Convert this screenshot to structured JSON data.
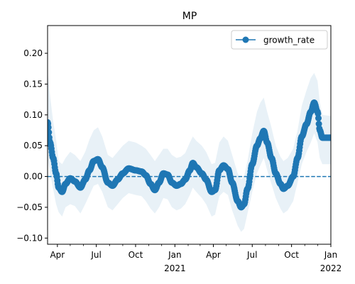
{
  "chart_data": {
    "type": "line",
    "title": "MP",
    "xlabel": "",
    "ylabel": "",
    "x_range": [
      "2020-03-09",
      "2022-01-01"
    ],
    "ylim": [
      -0.11,
      0.245
    ],
    "y_ticks": [
      -0.1,
      -0.05,
      0.0,
      0.05,
      0.1,
      0.15,
      0.2
    ],
    "y_tick_labels": [
      "−0.10",
      "−0.05",
      "0.00",
      "0.05",
      "0.10",
      "0.15",
      "0.20"
    ],
    "x_major_ticks": [
      {
        "date": "2020-04-01",
        "label": "Apr",
        "sublabel": ""
      },
      {
        "date": "2020-07-01",
        "label": "Jul",
        "sublabel": ""
      },
      {
        "date": "2020-10-01",
        "label": "Oct",
        "sublabel": ""
      },
      {
        "date": "2021-01-01",
        "label": "Jan",
        "sublabel": "2021"
      },
      {
        "date": "2021-04-01",
        "label": "Apr",
        "sublabel": ""
      },
      {
        "date": "2021-07-01",
        "label": "Jul",
        "sublabel": ""
      },
      {
        "date": "2021-10-01",
        "label": "Oct",
        "sublabel": ""
      },
      {
        "date": "2022-01-01",
        "label": "Jan",
        "sublabel": "2022"
      }
    ],
    "x_minor_ticks": [
      "2020-05-01",
      "2020-06-01",
      "2020-08-01",
      "2020-09-01",
      "2020-11-01",
      "2020-12-01",
      "2021-02-01",
      "2021-03-01",
      "2021-05-01",
      "2021-06-01",
      "2021-08-01",
      "2021-09-01",
      "2021-11-01",
      "2021-12-01"
    ],
    "grid": false,
    "legend": {
      "position": "upper right",
      "entries": [
        "growth_rate"
      ]
    },
    "reference_line": {
      "y": 0.0,
      "style": "dashed"
    },
    "series": [
      {
        "name": "growth_rate",
        "color": "#1f77b4",
        "band_color": "#1f77b4",
        "band_opacity": 0.1,
        "keypoints": [
          {
            "x": "2020-03-09",
            "y": 0.088,
            "lo": 0.03,
            "hi": 0.17
          },
          {
            "x": "2020-03-15",
            "y": 0.055,
            "lo": 0.005,
            "hi": 0.13
          },
          {
            "x": "2020-03-22",
            "y": 0.03,
            "lo": -0.02,
            "hi": 0.09
          },
          {
            "x": "2020-03-29",
            "y": 0.005,
            "lo": -0.045,
            "hi": 0.06
          },
          {
            "x": "2020-04-04",
            "y": -0.018,
            "lo": -0.058,
            "hi": 0.025
          },
          {
            "x": "2020-04-12",
            "y": -0.025,
            "lo": -0.065,
            "hi": 0.02
          },
          {
            "x": "2020-04-20",
            "y": -0.012,
            "lo": -0.05,
            "hi": 0.03
          },
          {
            "x": "2020-05-01",
            "y": -0.003,
            "lo": -0.045,
            "hi": 0.04
          },
          {
            "x": "2020-05-12",
            "y": -0.008,
            "lo": -0.048,
            "hi": 0.035
          },
          {
            "x": "2020-05-25",
            "y": -0.018,
            "lo": -0.06,
            "hi": 0.025
          },
          {
            "x": "2020-06-05",
            "y": -0.005,
            "lo": -0.045,
            "hi": 0.04
          },
          {
            "x": "2020-06-15",
            "y": 0.01,
            "lo": -0.03,
            "hi": 0.06
          },
          {
            "x": "2020-06-25",
            "y": 0.025,
            "lo": -0.015,
            "hi": 0.075
          },
          {
            "x": "2020-07-05",
            "y": 0.028,
            "lo": -0.012,
            "hi": 0.08
          },
          {
            "x": "2020-07-15",
            "y": 0.015,
            "lo": -0.025,
            "hi": 0.065
          },
          {
            "x": "2020-07-28",
            "y": -0.01,
            "lo": -0.05,
            "hi": 0.035
          },
          {
            "x": "2020-08-08",
            "y": -0.015,
            "lo": -0.055,
            "hi": 0.03
          },
          {
            "x": "2020-08-20",
            "y": -0.005,
            "lo": -0.045,
            "hi": 0.04
          },
          {
            "x": "2020-09-01",
            "y": 0.005,
            "lo": -0.035,
            "hi": 0.05
          },
          {
            "x": "2020-09-15",
            "y": 0.013,
            "lo": -0.027,
            "hi": 0.058
          },
          {
            "x": "2020-10-01",
            "y": 0.01,
            "lo": -0.03,
            "hi": 0.055
          },
          {
            "x": "2020-10-15",
            "y": 0.008,
            "lo": -0.032,
            "hi": 0.05
          },
          {
            "x": "2020-10-25",
            "y": 0.002,
            "lo": -0.04,
            "hi": 0.045
          },
          {
            "x": "2020-11-05",
            "y": -0.012,
            "lo": -0.052,
            "hi": 0.035
          },
          {
            "x": "2020-11-15",
            "y": -0.022,
            "lo": -0.06,
            "hi": 0.025
          },
          {
            "x": "2020-11-25",
            "y": -0.01,
            "lo": -0.05,
            "hi": 0.035
          },
          {
            "x": "2020-12-05",
            "y": 0.005,
            "lo": -0.035,
            "hi": 0.045
          },
          {
            "x": "2020-12-15",
            "y": 0.003,
            "lo": -0.037,
            "hi": 0.045
          },
          {
            "x": "2020-12-25",
            "y": -0.01,
            "lo": -0.05,
            "hi": 0.035
          },
          {
            "x": "2021-01-05",
            "y": -0.015,
            "lo": -0.055,
            "hi": 0.03
          },
          {
            "x": "2021-01-15",
            "y": -0.012,
            "lo": -0.052,
            "hi": 0.032
          },
          {
            "x": "2021-01-25",
            "y": -0.005,
            "lo": -0.045,
            "hi": 0.038
          },
          {
            "x": "2021-02-05",
            "y": 0.01,
            "lo": -0.03,
            "hi": 0.055
          },
          {
            "x": "2021-02-12",
            "y": 0.022,
            "lo": -0.018,
            "hi": 0.065
          },
          {
            "x": "2021-02-20",
            "y": 0.015,
            "lo": -0.025,
            "hi": 0.058
          },
          {
            "x": "2021-03-05",
            "y": 0.005,
            "lo": -0.035,
            "hi": 0.05
          },
          {
            "x": "2021-03-15",
            "y": -0.005,
            "lo": -0.045,
            "hi": 0.04
          },
          {
            "x": "2021-03-28",
            "y": -0.025,
            "lo": -0.065,
            "hi": 0.02
          },
          {
            "x": "2021-04-05",
            "y": -0.022,
            "lo": -0.062,
            "hi": 0.022
          },
          {
            "x": "2021-04-15",
            "y": 0.01,
            "lo": -0.032,
            "hi": 0.055
          },
          {
            "x": "2021-04-25",
            "y": 0.018,
            "lo": -0.025,
            "hi": 0.065
          },
          {
            "x": "2021-05-05",
            "y": 0.012,
            "lo": -0.03,
            "hi": 0.058
          },
          {
            "x": "2021-05-15",
            "y": -0.01,
            "lo": -0.055,
            "hi": 0.035
          },
          {
            "x": "2021-05-28",
            "y": -0.04,
            "lo": -0.08,
            "hi": 0.005
          },
          {
            "x": "2021-06-05",
            "y": -0.05,
            "lo": -0.09,
            "hi": -0.005
          },
          {
            "x": "2021-06-12",
            "y": -0.045,
            "lo": -0.085,
            "hi": 0.0
          },
          {
            "x": "2021-06-20",
            "y": -0.02,
            "lo": -0.06,
            "hi": 0.025
          },
          {
            "x": "2021-07-01",
            "y": 0.02,
            "lo": -0.025,
            "hi": 0.07
          },
          {
            "x": "2021-07-12",
            "y": 0.05,
            "lo": 0.005,
            "hi": 0.105
          },
          {
            "x": "2021-07-20",
            "y": 0.062,
            "lo": 0.018,
            "hi": 0.12
          },
          {
            "x": "2021-07-28",
            "y": 0.074,
            "lo": 0.03,
            "hi": 0.128
          },
          {
            "x": "2021-08-05",
            "y": 0.055,
            "lo": 0.01,
            "hi": 0.105
          },
          {
            "x": "2021-08-15",
            "y": 0.03,
            "lo": -0.012,
            "hi": 0.08
          },
          {
            "x": "2021-08-25",
            "y": 0.005,
            "lo": -0.035,
            "hi": 0.05
          },
          {
            "x": "2021-09-05",
            "y": -0.012,
            "lo": -0.052,
            "hi": 0.032
          },
          {
            "x": "2021-09-12",
            "y": -0.02,
            "lo": -0.06,
            "hi": 0.025
          },
          {
            "x": "2021-09-22",
            "y": -0.015,
            "lo": -0.055,
            "hi": 0.03
          },
          {
            "x": "2021-10-05",
            "y": 0.0,
            "lo": -0.04,
            "hi": 0.045
          },
          {
            "x": "2021-10-15",
            "y": 0.03,
            "lo": -0.01,
            "hi": 0.075
          },
          {
            "x": "2021-10-25",
            "y": 0.065,
            "lo": 0.02,
            "hi": 0.115
          },
          {
            "x": "2021-11-05",
            "y": 0.085,
            "lo": 0.04,
            "hi": 0.14
          },
          {
            "x": "2021-11-15",
            "y": 0.105,
            "lo": 0.055,
            "hi": 0.16
          },
          {
            "x": "2021-11-23",
            "y": 0.12,
            "lo": 0.07,
            "hi": 0.168
          },
          {
            "x": "2021-12-01",
            "y": 0.105,
            "lo": 0.055,
            "hi": 0.155
          },
          {
            "x": "2021-12-06",
            "y": 0.075,
            "lo": 0.03,
            "hi": 0.12
          },
          {
            "x": "2021-12-12",
            "y": 0.063,
            "lo": 0.02,
            "hi": 0.1
          },
          {
            "x": "2022-01-01",
            "y": 0.063,
            "lo": 0.02,
            "hi": 0.098
          }
        ]
      }
    ]
  }
}
